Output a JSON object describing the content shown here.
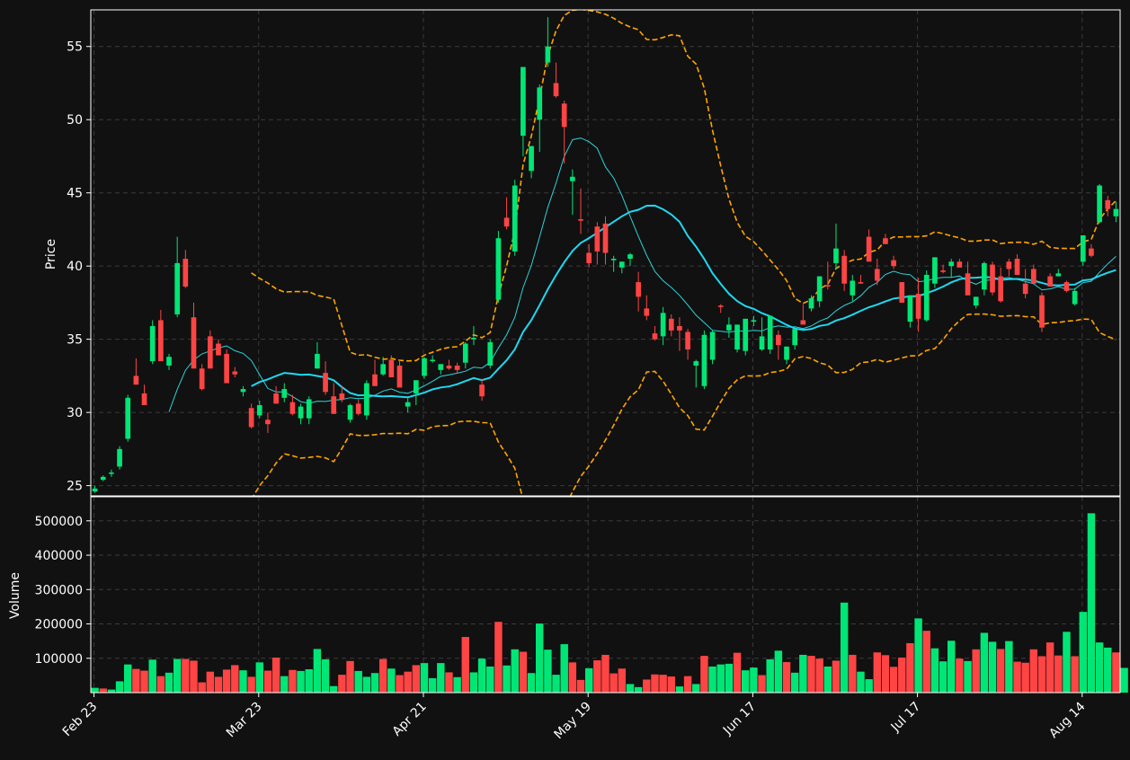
{
  "chart_data": {
    "type": "candlestick",
    "colors": {
      "background": "#111111",
      "up": "#00e676",
      "down": "#ff4444",
      "bollinger": "#ffa500",
      "ma_fast": "#2ed3d8",
      "ma_slow": "#1fd8f0",
      "grid": "#3a3a3a",
      "axes_text": "#ffffff"
    },
    "date_axis_labels": [
      "Feb 23",
      "Mar 23",
      "Apr 21",
      "May 19",
      "Jun 17",
      "Jul 17",
      "Aug 14"
    ],
    "price_panel": {
      "ylabel": "Price",
      "ylim": [
        24.3,
        57.5
      ],
      "yticks": [
        25,
        30,
        35,
        40,
        45,
        50,
        55
      ]
    },
    "volume_panel": {
      "ylabel": "Volume",
      "ylim": [
        0,
        570000
      ],
      "yticks": [
        100000,
        200000,
        300000,
        400000,
        500000
      ],
      "ytick_labels": [
        "100000",
        "200000",
        "300000",
        "400000",
        "500000"
      ]
    },
    "price_candles": [
      [
        24.6,
        25.0,
        24.5,
        24.8
      ],
      [
        25.4,
        25.7,
        25.3,
        25.6
      ],
      [
        25.8,
        26.1,
        25.6,
        25.9
      ],
      [
        26.3,
        27.7,
        26.1,
        27.5
      ],
      [
        28.2,
        31.2,
        28.0,
        31.0
      ],
      [
        32.5,
        33.7,
        32.1,
        31.9
      ],
      [
        31.3,
        31.9,
        30.6,
        30.5
      ],
      [
        33.5,
        36.3,
        33.3,
        35.9
      ],
      [
        36.3,
        37.0,
        34.9,
        33.5
      ],
      [
        33.2,
        34.0,
        32.9,
        33.8
      ],
      [
        36.7,
        42.0,
        36.5,
        40.2
      ],
      [
        40.5,
        41.1,
        38.5,
        38.6
      ],
      [
        36.5,
        37.5,
        34.2,
        33.0
      ],
      [
        33.0,
        33.3,
        31.5,
        31.6
      ],
      [
        35.2,
        35.6,
        33.4,
        33.0
      ],
      [
        34.7,
        35.0,
        33.9,
        33.9
      ],
      [
        34.0,
        34.3,
        32.8,
        32.0
      ],
      [
        32.8,
        33.1,
        32.4,
        32.6
      ],
      [
        31.4,
        31.8,
        31.1,
        31.6
      ],
      [
        30.3,
        30.6,
        28.9,
        29.0
      ],
      [
        29.8,
        30.8,
        29.6,
        30.5
      ],
      [
        29.5,
        30.0,
        28.6,
        29.2
      ],
      [
        31.3,
        31.8,
        30.7,
        30.6
      ],
      [
        31.0,
        32.0,
        30.7,
        31.6
      ],
      [
        30.7,
        31.2,
        29.8,
        29.9
      ],
      [
        29.6,
        30.6,
        29.2,
        30.4
      ],
      [
        29.6,
        31.1,
        29.2,
        30.9
      ],
      [
        33.0,
        34.8,
        33.0,
        34.0
      ],
      [
        32.7,
        33.5,
        31.2,
        31.4
      ],
      [
        31.1,
        32.0,
        30.6,
        29.9
      ],
      [
        31.3,
        31.8,
        30.7,
        30.9
      ],
      [
        29.5,
        30.6,
        29.3,
        30.5
      ],
      [
        30.6,
        30.9,
        29.8,
        29.9
      ],
      [
        29.8,
        32.2,
        29.5,
        32.0
      ],
      [
        32.6,
        33.6,
        32.0,
        31.8
      ],
      [
        32.6,
        33.8,
        32.5,
        33.3
      ],
      [
        33.6,
        33.9,
        32.4,
        32.4
      ],
      [
        33.2,
        33.6,
        31.9,
        31.7
      ],
      [
        30.4,
        31.0,
        30.0,
        30.7
      ],
      [
        31.3,
        32.2,
        30.5,
        32.2
      ],
      [
        32.5,
        33.8,
        32.3,
        33.7
      ],
      [
        33.5,
        33.9,
        33.4,
        33.6
      ],
      [
        32.9,
        33.3,
        32.6,
        33.3
      ],
      [
        33.2,
        33.6,
        32.9,
        33.0
      ],
      [
        33.2,
        33.4,
        32.7,
        32.9
      ],
      [
        33.4,
        34.8,
        33.0,
        34.7
      ],
      [
        35.0,
        35.9,
        34.6,
        35.1
      ],
      [
        31.9,
        32.3,
        30.8,
        31.1
      ],
      [
        33.2,
        35.0,
        33.0,
        34.8
      ],
      [
        37.7,
        42.4,
        37.5,
        41.9
      ],
      [
        43.3,
        44.7,
        42.5,
        42.7
      ],
      [
        41.0,
        45.9,
        40.7,
        45.5
      ],
      [
        48.9,
        53.5,
        47.5,
        53.6
      ],
      [
        46.5,
        48.2,
        46.0,
        48.2
      ],
      [
        50.0,
        52.4,
        47.8,
        52.2
      ],
      [
        53.9,
        57.0,
        53.6,
        55.0
      ],
      [
        52.5,
        53.9,
        51.5,
        51.6
      ],
      [
        51.1,
        51.3,
        47.0,
        49.5
      ],
      [
        45.8,
        46.6,
        43.5,
        46.1
      ],
      [
        43.2,
        45.3,
        42.2,
        43.1
      ],
      [
        40.9,
        41.5,
        39.9,
        40.2
      ],
      [
        42.7,
        43.0,
        40.1,
        41.0
      ],
      [
        42.9,
        43.4,
        40.1,
        40.9
      ],
      [
        40.4,
        40.7,
        39.6,
        40.5
      ],
      [
        39.9,
        40.3,
        39.5,
        40.3
      ],
      [
        40.5,
        40.9,
        40.0,
        40.8
      ],
      [
        38.9,
        39.6,
        36.9,
        37.9
      ],
      [
        37.1,
        38.0,
        36.3,
        36.6
      ],
      [
        35.4,
        35.9,
        34.9,
        35.0
      ],
      [
        35.2,
        37.2,
        34.6,
        36.8
      ],
      [
        36.4,
        36.7,
        35.2,
        35.6
      ],
      [
        35.9,
        36.5,
        34.2,
        35.6
      ],
      [
        35.5,
        35.7,
        33.6,
        34.3
      ],
      [
        33.2,
        33.6,
        31.7,
        33.5
      ],
      [
        31.8,
        35.6,
        31.6,
        35.3
      ],
      [
        33.6,
        35.6,
        33.3,
        35.5
      ],
      [
        37.3,
        37.4,
        36.8,
        37.2
      ],
      [
        35.6,
        36.5,
        35.1,
        36.0
      ],
      [
        34.3,
        35.4,
        34.1,
        36.0
      ],
      [
        34.2,
        36.3,
        33.9,
        36.4
      ],
      [
        36.2,
        36.6,
        35.9,
        36.3
      ],
      [
        34.3,
        36.5,
        34.2,
        35.2
      ],
      [
        34.3,
        36.6,
        34.0,
        36.6
      ],
      [
        35.3,
        35.6,
        33.6,
        34.6
      ],
      [
        33.6,
        34.5,
        33.3,
        34.5
      ],
      [
        34.6,
        35.6,
        34.3,
        35.7
      ],
      [
        36.3,
        37.4,
        36.0,
        36.0
      ],
      [
        37.1,
        38.0,
        36.9,
        37.8
      ],
      [
        37.6,
        39.3,
        37.2,
        39.3
      ],
      [
        38.7,
        40.3,
        38.4,
        38.6
      ],
      [
        40.2,
        42.9,
        39.8,
        41.2
      ],
      [
        40.7,
        41.1,
        38.3,
        38.8
      ],
      [
        38.0,
        39.4,
        37.6,
        39.0
      ],
      [
        38.9,
        39.4,
        38.8,
        38.8
      ],
      [
        42.0,
        42.5,
        40.6,
        40.3
      ],
      [
        39.8,
        40.5,
        38.7,
        39.0
      ],
      [
        41.9,
        42.2,
        41.7,
        41.5
      ],
      [
        40.4,
        40.7,
        39.8,
        40.0
      ],
      [
        38.9,
        38.9,
        37.7,
        37.5
      ],
      [
        36.2,
        38.0,
        35.8,
        38.0
      ],
      [
        38.1,
        39.2,
        35.5,
        36.4
      ],
      [
        36.3,
        39.7,
        36.2,
        39.4
      ],
      [
        38.8,
        40.6,
        38.5,
        40.6
      ],
      [
        39.7,
        40.1,
        39.5,
        39.6
      ],
      [
        40.0,
        40.5,
        39.2,
        40.3
      ],
      [
        40.3,
        40.5,
        40.0,
        39.9
      ],
      [
        39.5,
        40.3,
        38.4,
        38.0
      ],
      [
        37.3,
        37.9,
        37.1,
        37.9
      ],
      [
        38.4,
        40.3,
        38.0,
        40.2
      ],
      [
        40.1,
        40.3,
        38.0,
        38.2
      ],
      [
        39.3,
        39.9,
        37.5,
        37.6
      ],
      [
        40.3,
        40.5,
        39.3,
        39.8
      ],
      [
        40.5,
        40.8,
        39.4,
        39.4
      ],
      [
        38.8,
        39.8,
        37.8,
        38.1
      ],
      [
        39.8,
        40.1,
        38.9,
        38.8
      ],
      [
        38.0,
        38.2,
        35.5,
        35.8
      ],
      [
        39.3,
        39.5,
        38.6,
        38.6
      ],
      [
        39.3,
        39.8,
        39.3,
        39.5
      ],
      [
        38.9,
        39.0,
        38.2,
        38.3
      ],
      [
        37.4,
        38.5,
        37.3,
        38.3
      ],
      [
        40.3,
        42.1,
        40.0,
        42.1
      ],
      [
        41.2,
        41.5,
        40.6,
        40.7
      ],
      [
        43.0,
        45.6,
        42.9,
        45.5
      ],
      [
        44.5,
        44.8,
        43.4,
        43.9
      ],
      [
        43.4,
        44.4,
        43.0,
        43.9
      ]
    ],
    "volume": [
      [
        14000,
        1
      ],
      [
        12000,
        -1
      ],
      [
        9000,
        1
      ],
      [
        33000,
        1
      ],
      [
        82000,
        1
      ],
      [
        69000,
        -1
      ],
      [
        64000,
        -1
      ],
      [
        96000,
        1
      ],
      [
        48000,
        -1
      ],
      [
        58000,
        1
      ],
      [
        98000,
        1
      ],
      [
        98000,
        -1
      ],
      [
        93000,
        -1
      ],
      [
        30000,
        -1
      ],
      [
        61000,
        -1
      ],
      [
        46000,
        -1
      ],
      [
        67000,
        -1
      ],
      [
        80000,
        -1
      ],
      [
        65000,
        1
      ],
      [
        46000,
        -1
      ],
      [
        88000,
        1
      ],
      [
        64000,
        -1
      ],
      [
        102000,
        -1
      ],
      [
        48000,
        1
      ],
      [
        66000,
        -1
      ],
      [
        63000,
        1
      ],
      [
        68000,
        1
      ],
      [
        127000,
        1
      ],
      [
        97000,
        1
      ],
      [
        19000,
        1
      ],
      [
        52000,
        -1
      ],
      [
        92000,
        -1
      ],
      [
        63000,
        1
      ],
      [
        46000,
        1
      ],
      [
        57000,
        1
      ],
      [
        98000,
        -1
      ],
      [
        70000,
        1
      ],
      [
        51000,
        -1
      ],
      [
        61000,
        -1
      ],
      [
        80000,
        -1
      ],
      [
        86000,
        1
      ],
      [
        42000,
        1
      ],
      [
        86000,
        1
      ],
      [
        59000,
        -1
      ],
      [
        45000,
        1
      ],
      [
        162000,
        -1
      ],
      [
        59000,
        1
      ],
      [
        99000,
        1
      ],
      [
        76000,
        1
      ],
      [
        206000,
        -1
      ],
      [
        79000,
        1
      ],
      [
        126000,
        1
      ],
      [
        119000,
        -1
      ],
      [
        57000,
        1
      ],
      [
        201000,
        1
      ],
      [
        125000,
        1
      ],
      [
        52000,
        1
      ],
      [
        141000,
        1
      ],
      [
        88000,
        -1
      ],
      [
        37000,
        -1
      ],
      [
        71000,
        1
      ],
      [
        94000,
        -1
      ],
      [
        110000,
        -1
      ],
      [
        56000,
        -1
      ],
      [
        70000,
        -1
      ],
      [
        25000,
        1
      ],
      [
        16000,
        1
      ],
      [
        38000,
        -1
      ],
      [
        53000,
        -1
      ],
      [
        52000,
        -1
      ],
      [
        47000,
        -1
      ],
      [
        18000,
        1
      ],
      [
        48000,
        -1
      ],
      [
        25000,
        1
      ],
      [
        107000,
        -1
      ],
      [
        76000,
        1
      ],
      [
        82000,
        1
      ],
      [
        84000,
        1
      ],
      [
        116000,
        -1
      ],
      [
        65000,
        1
      ],
      [
        73000,
        1
      ],
      [
        51000,
        -1
      ],
      [
        97000,
        1
      ],
      [
        122000,
        1
      ],
      [
        89000,
        -1
      ],
      [
        58000,
        1
      ],
      [
        110000,
        1
      ],
      [
        107000,
        -1
      ],
      [
        99000,
        -1
      ],
      [
        76000,
        1
      ],
      [
        93000,
        -1
      ],
      [
        262000,
        1
      ],
      [
        110000,
        -1
      ],
      [
        61000,
        1
      ],
      [
        39000,
        1
      ],
      [
        117000,
        -1
      ],
      [
        109000,
        -1
      ],
      [
        75000,
        -1
      ],
      [
        102000,
        -1
      ],
      [
        144000,
        -1
      ],
      [
        216000,
        1
      ],
      [
        180000,
        -1
      ],
      [
        129000,
        1
      ],
      [
        91000,
        1
      ],
      [
        151000,
        1
      ],
      [
        99000,
        -1
      ],
      [
        92000,
        1
      ],
      [
        126000,
        -1
      ],
      [
        174000,
        1
      ],
      [
        148000,
        1
      ],
      [
        127000,
        -1
      ],
      [
        150000,
        1
      ],
      [
        90000,
        -1
      ],
      [
        87000,
        -1
      ],
      [
        126000,
        -1
      ],
      [
        106000,
        -1
      ],
      [
        146000,
        -1
      ],
      [
        108000,
        -1
      ],
      [
        177000,
        1
      ],
      [
        106000,
        -1
      ],
      [
        235000,
        1
      ],
      [
        522000,
        1
      ],
      [
        146000,
        1
      ],
      [
        131000,
        1
      ],
      [
        117000,
        -1
      ],
      [
        72000,
        1
      ]
    ]
  }
}
